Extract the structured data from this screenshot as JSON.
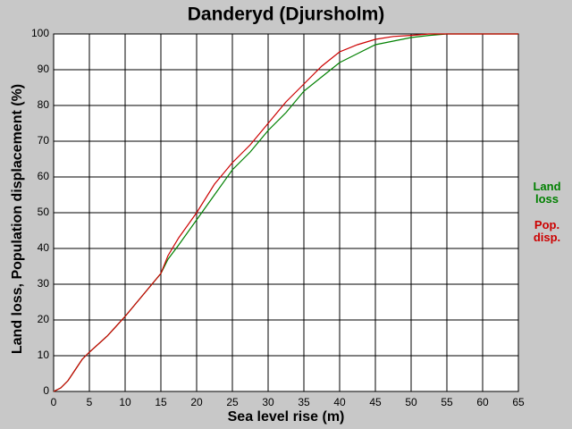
{
  "chart_data": {
    "type": "line",
    "title": "Danderyd (Djursholm)",
    "x_label": "Sea level rise (m)",
    "y_label": "Land loss, Population displacement (%)",
    "xlim": [
      0,
      65
    ],
    "xticks": [
      0,
      5,
      10,
      15,
      20,
      25,
      30,
      35,
      40,
      45,
      50,
      55,
      60,
      65
    ],
    "ylim": [
      0,
      100
    ],
    "yticks": [
      0,
      10,
      20,
      30,
      40,
      50,
      60,
      70,
      80,
      90,
      100
    ],
    "grid": true,
    "legend": "right",
    "x": [
      0,
      1,
      2,
      3,
      4,
      5,
      7.5,
      10,
      12.5,
      15,
      16,
      17.5,
      20,
      22.5,
      25,
      27.5,
      30,
      32.5,
      35,
      37.5,
      40,
      42.5,
      45,
      47.5,
      50,
      52.5,
      55,
      65
    ],
    "series": [
      {
        "name": "Land loss",
        "color": "#008000",
        "values": [
          0,
          1,
          3,
          6,
          9,
          11,
          15.5,
          21,
          27,
          33,
          37,
          41,
          48,
          55,
          62,
          67,
          73,
          78,
          84,
          88,
          92,
          94.5,
          97,
          98,
          99,
          99.6,
          100,
          100
        ]
      },
      {
        "name": "Pop. disp.",
        "color": "#cc0000",
        "values": [
          0,
          1,
          3,
          6,
          9,
          11,
          15.5,
          21,
          27,
          33,
          38,
          43,
          50,
          58,
          64,
          69,
          75,
          81,
          86,
          91,
          95,
          97,
          98.5,
          99.3,
          99.6,
          100,
          100,
          100
        ]
      }
    ]
  }
}
